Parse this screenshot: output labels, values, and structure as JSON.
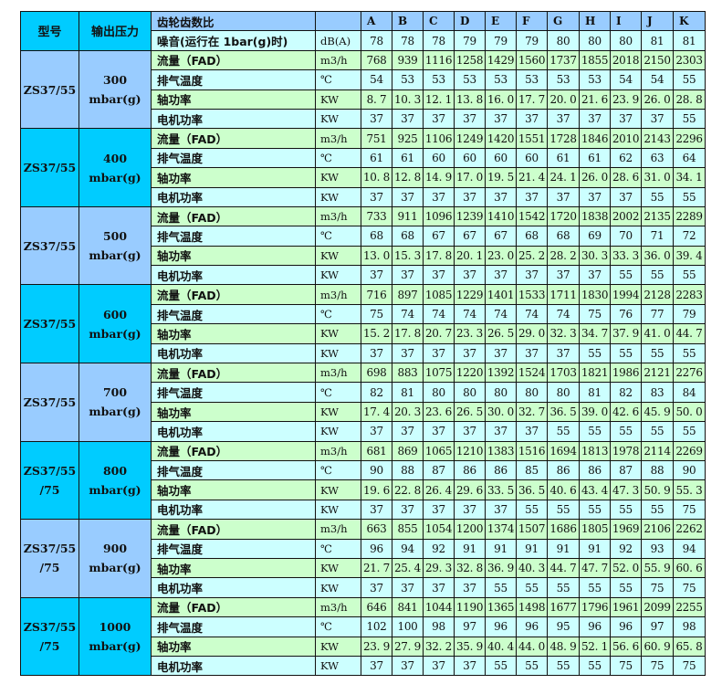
{
  "header": {
    "model": "型号",
    "pressure": "输出压力",
    "ratio": "齿轮齿数比",
    "noise": "噪音(运行在 1bar(g)时)",
    "noise_unit": "dB(A)",
    "columns": [
      "A",
      "B",
      "C",
      "D",
      "E",
      "F",
      "G",
      "H",
      "I",
      "J",
      "K"
    ],
    "noise_values": [
      "78",
      "78",
      "78",
      "79",
      "79",
      "79",
      "80",
      "80",
      "80",
      "81",
      "81"
    ]
  },
  "row_labels": [
    "流量（FAD）",
    "排气温度",
    "轴功率",
    "电机功率"
  ],
  "row_units": [
    "m3/h",
    "℃",
    "KW",
    "KW"
  ],
  "colors": {
    "cyan": "#00ccff",
    "blue": "#99ccff",
    "green": "#ccffcc",
    "light_cyan": "#ccffff"
  },
  "groups": [
    {
      "model": [
        "ZS37/55"
      ],
      "pressure": [
        "300",
        "mbar(g)"
      ],
      "rows": [
        [
          "768",
          "939",
          "1116",
          "1258",
          "1429",
          "1560",
          "1737",
          "1855",
          "2018",
          "2150",
          "2303"
        ],
        [
          "54",
          "53",
          "53",
          "53",
          "53",
          "53",
          "53",
          "53",
          "54",
          "54",
          "55"
        ],
        [
          "8. 7",
          "10. 3",
          "12. 1",
          "13. 8",
          "16. 0",
          "17. 7",
          "20. 0",
          "21. 6",
          "23. 9",
          "26. 0",
          "28. 8"
        ],
        [
          "37",
          "37",
          "37",
          "37",
          "37",
          "37",
          "37",
          "37",
          "37",
          "37",
          "55"
        ]
      ]
    },
    {
      "model": [
        "ZS37/55"
      ],
      "pressure": [
        "400",
        "mbar(g)"
      ],
      "rows": [
        [
          "751",
          "925",
          "1106",
          "1249",
          "1420",
          "1551",
          "1728",
          "1846",
          "2010",
          "2143",
          "2296"
        ],
        [
          "61",
          "61",
          "60",
          "60",
          "60",
          "60",
          "61",
          "61",
          "62",
          "63",
          "64"
        ],
        [
          "10. 8",
          "12. 8",
          "14. 9",
          "17. 0",
          "19. 5",
          "21. 4",
          "24. 1",
          "26. 0",
          "28. 6",
          "31. 0",
          "34. 1"
        ],
        [
          "37",
          "37",
          "37",
          "37",
          "37",
          "37",
          "37",
          "37",
          "37",
          "55",
          "55"
        ]
      ]
    },
    {
      "model": [
        "ZS37/55"
      ],
      "pressure": [
        "500",
        "mbar(g)"
      ],
      "rows": [
        [
          "733",
          "911",
          "1096",
          "1239",
          "1410",
          "1542",
          "1720",
          "1838",
          "2002",
          "2135",
          "2289"
        ],
        [
          "68",
          "68",
          "67",
          "67",
          "67",
          "68",
          "68",
          "69",
          "70",
          "71",
          "72"
        ],
        [
          "13. 0",
          "15. 3",
          "17. 8",
          "20. 1",
          "23. 0",
          "25. 2",
          "28. 2",
          "30. 3",
          "33. 3",
          "36. 0",
          "39. 4"
        ],
        [
          "37",
          "37",
          "37",
          "37",
          "37",
          "37",
          "37",
          "37",
          "55",
          "55",
          "55"
        ]
      ]
    },
    {
      "model": [
        "ZS37/55"
      ],
      "pressure": [
        "600",
        "mbar(g)"
      ],
      "rows": [
        [
          "716",
          "897",
          "1085",
          "1229",
          "1401",
          "1533",
          "1711",
          "1830",
          "1994",
          "2128",
          "2283"
        ],
        [
          "75",
          "74",
          "74",
          "74",
          "74",
          "74",
          "74",
          "75",
          "76",
          "77",
          "79"
        ],
        [
          "15. 2",
          "17. 8",
          "20. 7",
          "23. 3",
          "26. 5",
          "29. 0",
          "32. 3",
          "34. 7",
          "37. 9",
          "41. 0",
          "44. 7"
        ],
        [
          "37",
          "37",
          "37",
          "37",
          "37",
          "37",
          "37",
          "55",
          "55",
          "55",
          "55"
        ]
      ]
    },
    {
      "model": [
        "ZS37/55"
      ],
      "pressure": [
        "700",
        "mbar(g)"
      ],
      "rows": [
        [
          "698",
          "883",
          "1075",
          "1220",
          "1392",
          "1524",
          "1703",
          "1821",
          "1986",
          "2121",
          "2276"
        ],
        [
          "82",
          "81",
          "80",
          "80",
          "80",
          "80",
          "80",
          "81",
          "82",
          "83",
          "84"
        ],
        [
          "17. 4",
          "20. 3",
          "23. 6",
          "26. 5",
          "30. 0",
          "32. 7",
          "36. 5",
          "39. 0",
          "42. 6",
          "45. 9",
          "50. 0"
        ],
        [
          "37",
          "37",
          "37",
          "37",
          "37",
          "37",
          "55",
          "55",
          "55",
          "55",
          "55"
        ]
      ]
    },
    {
      "model": [
        "ZS37/55",
        "/75"
      ],
      "pressure": [
        "800",
        "mbar(g)"
      ],
      "rows": [
        [
          "681",
          "869",
          "1065",
          "1210",
          "1383",
          "1516",
          "1694",
          "1813",
          "1978",
          "2114",
          "2269"
        ],
        [
          "90",
          "88",
          "87",
          "86",
          "86",
          "85",
          "86",
          "86",
          "87",
          "88",
          "90"
        ],
        [
          "19. 6",
          "22. 8",
          "26. 4",
          "29. 6",
          "33. 5",
          "36. 5",
          "40. 6",
          "43. 4",
          "47. 3",
          "50. 9",
          "55. 3"
        ],
        [
          "37",
          "37",
          "37",
          "37",
          "37",
          "55",
          "55",
          "55",
          "55",
          "55",
          "75"
        ]
      ]
    },
    {
      "model": [
        "ZS37/55",
        "/75"
      ],
      "pressure": [
        "900",
        "mbar(g)"
      ],
      "rows": [
        [
          "663",
          "855",
          "1054",
          "1200",
          "1374",
          "1507",
          "1686",
          "1805",
          "1969",
          "2106",
          "2262"
        ],
        [
          "96",
          "94",
          "92",
          "91",
          "91",
          "91",
          "91",
          "91",
          "92",
          "93",
          "94"
        ],
        [
          "21. 7",
          "25. 4",
          "29. 3",
          "32. 8",
          "36. 9",
          "40. 3",
          "44. 7",
          "47. 7",
          "52. 0",
          "55. 9",
          "60. 6"
        ],
        [
          "37",
          "37",
          "37",
          "37",
          "55",
          "55",
          "55",
          "55",
          "55",
          "75",
          "75"
        ]
      ]
    },
    {
      "model": [
        "ZS37/55",
        "/75"
      ],
      "pressure": [
        "1000",
        "mbar(g)"
      ],
      "rows": [
        [
          "646",
          "841",
          "1044",
          "1190",
          "1365",
          "1498",
          "1677",
          "1796",
          "1961",
          "2099",
          "2255"
        ],
        [
          "102",
          "100",
          "98",
          "97",
          "96",
          "96",
          "95",
          "96",
          "96",
          "97",
          "98"
        ],
        [
          "23. 9",
          "27. 9",
          "32. 2",
          "35. 9",
          "40. 4",
          "44. 0",
          "48. 9",
          "52. 1",
          "56. 6",
          "60. 9",
          "65. 8"
        ],
        [
          "37",
          "37",
          "37",
          "37",
          "55",
          "55",
          "55",
          "55",
          "75",
          "75",
          "75"
        ]
      ]
    }
  ]
}
